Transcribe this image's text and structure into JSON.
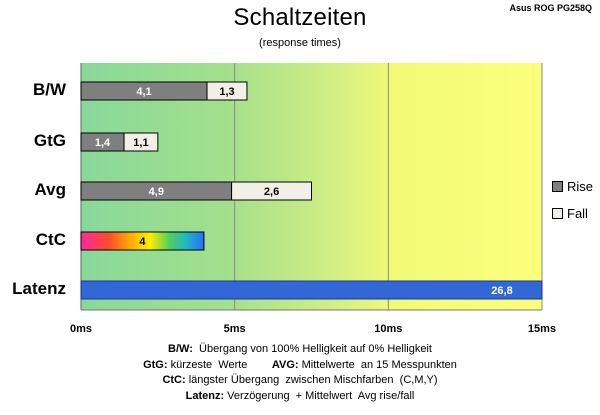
{
  "corner_label": "Asus ROG PG258Q",
  "chart_data": {
    "type": "bar",
    "orientation": "horizontal",
    "stacked": true,
    "title": "Schaltzeiten",
    "subtitle": "(response times)",
    "categories": [
      "B/W",
      "GtG",
      "Avg",
      "CtC",
      "Latenz"
    ],
    "xlim": [
      0,
      15
    ],
    "xticks": [
      "0ms",
      "5ms",
      "10ms",
      "15ms"
    ],
    "grid": true,
    "background": "gradient green to yellow",
    "legend_position": "right",
    "series": [
      {
        "name": "Rise",
        "color": "#7f7f7f",
        "values": [
          4.1,
          1.4,
          4.9,
          null,
          null
        ],
        "labels": [
          "4,1",
          "1,4",
          "4,9",
          "",
          ""
        ]
      },
      {
        "name": "Fall",
        "color": "#f2efe6",
        "values": [
          1.3,
          1.1,
          2.6,
          null,
          null
        ],
        "labels": [
          "1,3",
          "1,1",
          "2,6",
          "",
          ""
        ]
      }
    ],
    "ctc": {
      "value": 4,
      "label": "4",
      "style": "rainbow gradient"
    },
    "latenz": {
      "value": 26.8,
      "label": "26,8",
      "color": "#3366d6"
    }
  },
  "notes": [
    {
      "parts": [
        {
          "b": "B/W:"
        },
        {
          "t": "  Übergang von 100% Helligkeit auf 0% Helligkeit"
        }
      ]
    },
    {
      "parts": [
        {
          "b": "GtG:"
        },
        {
          "t": " kürzeste  Werte        "
        },
        {
          "b": "AVG:"
        },
        {
          "t": " Mittelwerte  an 15 Messpunkten"
        }
      ]
    },
    {
      "parts": [
        {
          "b": "CtC:"
        },
        {
          "t": " längster Übergang  zwischen Mischfarben  (C,M,Y)"
        }
      ]
    },
    {
      "parts": [
        {
          "b": "Latenz:"
        },
        {
          "t": " Verzögerung  + Mittelwert  Avg rise/fall"
        }
      ]
    }
  ]
}
